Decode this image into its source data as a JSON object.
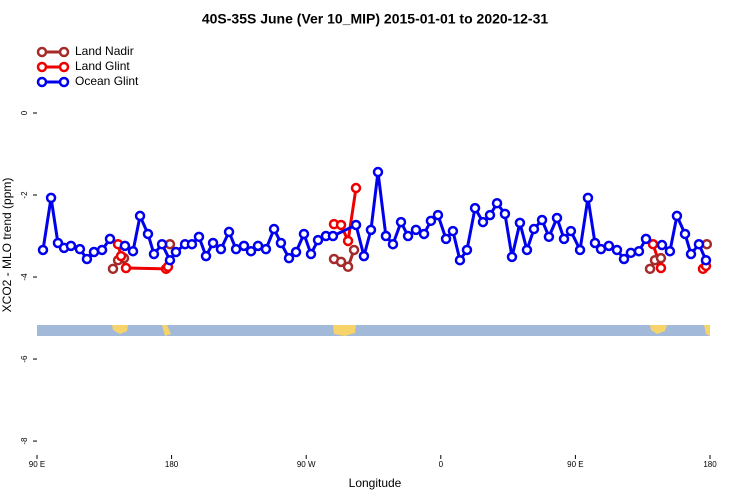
{
  "chart_data": {
    "type": "line",
    "title": "40S-35S June (Ver 10_MIP)   2015-01-01 to 2020-12-31",
    "x_label": "Longitude",
    "y_label": "XCO2 - MLO trend (ppm)",
    "xlim": [
      90,
      540
    ],
    "xticks": [
      {
        "value": 90,
        "label": "90 E"
      },
      180,
      {
        "value": 270,
        "label": "90 W"
      },
      {
        "value": 360,
        "label": "0"
      },
      {
        "value": 450,
        "label": "90 E"
      },
      {
        "value": 540,
        "label": "180"
      }
    ],
    "ylim": [
      -8.34,
      1.78
    ],
    "yticks": [
      0,
      -2,
      -4,
      -6,
      -8
    ],
    "legend": "top-left",
    "series": [
      {
        "name": "Land Nadir",
        "color": "#a52a2a",
        "x": [
          140.8,
          144.2,
          148.2,
          null,
          178.9,
          null,
          288.6,
          293.3,
          298.0,
          302.0,
          null,
          499.9,
          503.2,
          507.2,
          null,
          537.9
        ],
        "values": [
          -3.8,
          -3.59,
          -3.54,
          null,
          -3.2,
          null,
          -3.56,
          -3.63,
          -3.75,
          -3.34,
          null,
          -3.8,
          -3.59,
          -3.54,
          null,
          -3.2
        ]
      },
      {
        "name": "Land Glint",
        "color": "#ee0000",
        "x": [
          144.2,
          146.2,
          149.5,
          176.3,
          177.6,
          null,
          288.6,
          293.3,
          298.0,
          303.3,
          null,
          501.9,
          507.2,
          null,
          535.3,
          537.3
        ],
        "values": [
          -3.2,
          -3.49,
          -3.78,
          -3.8,
          -3.75,
          null,
          -2.71,
          -2.73,
          -3.12,
          -1.83,
          null,
          -3.2,
          -3.78,
          null,
          -3.8,
          -3.73
        ]
      },
      {
        "name": "Ocean Glint",
        "color": "#0000ee",
        "x": [
          94.0,
          99.4,
          104.0,
          108.1,
          112.7,
          118.7,
          123.4,
          128.1,
          133.5,
          138.8,
          148.8,
          154.2,
          158.9,
          164.2,
          168.2,
          173.6,
          178.9,
          182.9,
          189.0,
          193.6,
          198.3,
          203.0,
          207.7,
          213.0,
          218.4,
          223.1,
          228.4,
          233.1,
          237.8,
          243.1,
          248.5,
          253.1,
          258.5,
          263.2,
          268.5,
          273.2,
          277.9,
          283.2,
          287.9,
          303.3,
          308.6,
          313.3,
          318.0,
          323.3,
          328.0,
          333.4,
          338.1,
          343.4,
          348.8,
          353.4,
          358.1,
          363.5,
          368.1,
          372.8,
          377.5,
          382.9,
          388.2,
          392.9,
          397.6,
          402.9,
          407.6,
          412.9,
          417.6,
          422.3,
          427.7,
          432.3,
          437.7,
          442.4,
          447.0,
          453.1,
          458.4,
          463.1,
          467.1,
          472.4,
          477.8,
          482.5,
          487.1,
          492.5,
          497.2,
          507.9,
          513.2,
          517.9,
          523.3,
          527.3,
          532.6,
          537.3
        ],
        "values": [
          -3.34,
          -2.07,
          -3.17,
          -3.29,
          -3.24,
          -3.32,
          -3.56,
          -3.39,
          -3.34,
          -3.07,
          -3.24,
          -3.37,
          -2.51,
          -2.95,
          -3.44,
          -3.2,
          -3.59,
          -3.39,
          -3.2,
          -3.2,
          -3.02,
          -3.49,
          -3.17,
          -3.32,
          -2.9,
          -3.32,
          -3.24,
          -3.37,
          -3.24,
          -3.32,
          -2.83,
          -3.17,
          -3.54,
          -3.39,
          -2.95,
          -3.44,
          -3.1,
          -3.0,
          -3.0,
          -2.73,
          -3.49,
          -2.85,
          -1.44,
          -3.0,
          -3.2,
          -2.66,
          -3.0,
          -2.85,
          -2.95,
          -2.63,
          -2.49,
          -3.07,
          -2.88,
          -3.59,
          -3.34,
          -2.32,
          -2.66,
          -2.49,
          -2.2,
          -2.46,
          -3.51,
          -2.68,
          -3.34,
          -2.83,
          -2.61,
          -3.02,
          -2.56,
          -3.07,
          -2.88,
          -3.34,
          -2.07,
          -3.17,
          -3.32,
          -3.24,
          -3.34,
          -3.56,
          -3.41,
          -3.37,
          -3.07,
          -3.22,
          -3.37,
          -2.51,
          -2.95,
          -3.44,
          -3.2,
          -3.59
        ]
      }
    ]
  }
}
